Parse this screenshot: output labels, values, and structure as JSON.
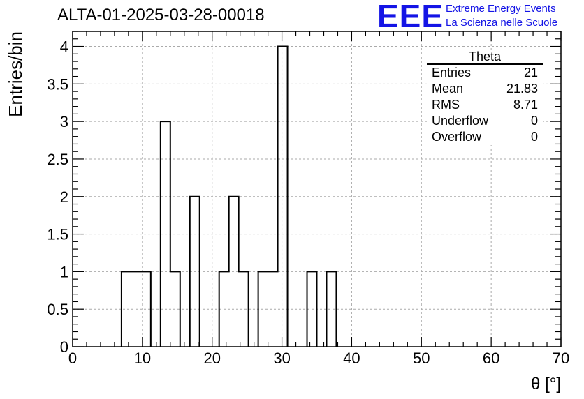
{
  "title": "ALTA-01-2025-03-28-00018",
  "logo": {
    "mark": "EEE",
    "line1": "Extreme Energy Events",
    "line2": "La Scienza nelle Scuole",
    "color": "#1414e6"
  },
  "stats_box": {
    "name": "Theta",
    "rows": [
      {
        "label": "Entries",
        "value": "21"
      },
      {
        "label": "Mean",
        "value": "21.83"
      },
      {
        "label": "RMS",
        "value": "8.71"
      },
      {
        "label": "Underflow",
        "value": "0"
      },
      {
        "label": "Overflow",
        "value": "0"
      }
    ]
  },
  "chart_data": {
    "type": "bar",
    "histogram": true,
    "xlabel": "θ [°]",
    "ylabel": "Entries/bin",
    "xlim": [
      0,
      70
    ],
    "ylim": [
      0,
      4.2
    ],
    "xticks": [
      "0",
      "10",
      "20",
      "30",
      "40",
      "50",
      "60",
      "70"
    ],
    "yticks": [
      "0",
      "0.5",
      "1",
      "1.5",
      "2",
      "2.5",
      "3",
      "3.5",
      "4"
    ],
    "grid": true,
    "bin_width": 1.4,
    "bins": [
      {
        "x0": 7.0,
        "x1": 8.4,
        "value": 1
      },
      {
        "x0": 8.4,
        "x1": 9.8,
        "value": 1
      },
      {
        "x0": 9.8,
        "x1": 11.2,
        "value": 1
      },
      {
        "x0": 12.6,
        "x1": 14.0,
        "value": 3
      },
      {
        "x0": 14.0,
        "x1": 15.4,
        "value": 1
      },
      {
        "x0": 16.8,
        "x1": 18.2,
        "value": 2
      },
      {
        "x0": 21.0,
        "x1": 22.4,
        "value": 1
      },
      {
        "x0": 22.4,
        "x1": 23.8,
        "value": 2
      },
      {
        "x0": 23.8,
        "x1": 25.2,
        "value": 1
      },
      {
        "x0": 26.6,
        "x1": 28.0,
        "value": 1
      },
      {
        "x0": 28.0,
        "x1": 29.4,
        "value": 1
      },
      {
        "x0": 29.4,
        "x1": 30.8,
        "value": 4
      },
      {
        "x0": 33.6,
        "x1": 35.0,
        "value": 1
      },
      {
        "x0": 36.4,
        "x1": 37.8,
        "value": 1
      }
    ]
  }
}
